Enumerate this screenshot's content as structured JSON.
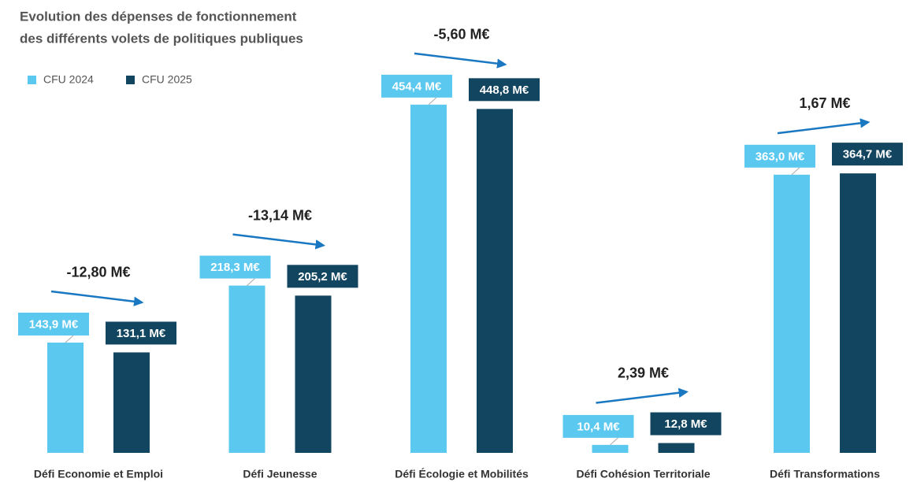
{
  "chart_data": {
    "type": "bar",
    "title": [
      "Evolution des dépenses de fonctionnement",
      "des différents volets de politiques publiques"
    ],
    "categories": [
      "Défi Economie et Emploi",
      "Défi Jeunesse",
      "Défi Écologie et Mobilités",
      "Défi Cohésion Territoriale",
      "Défi Transformations"
    ],
    "series": [
      {
        "name": "CFU 2024",
        "color": "#5bc8f0",
        "values": [
          143.9,
          218.3,
          454.4,
          10.4,
          363.0
        ],
        "value_labels": [
          "143,9 M€",
          "218,3 M€",
          "454,4 M€",
          "10,4 M€",
          "363,0 M€"
        ]
      },
      {
        "name": "CFU 2025",
        "color": "#12455f",
        "values": [
          131.1,
          205.2,
          448.8,
          12.8,
          364.7
        ],
        "value_labels": [
          "131,1 M€",
          "205,2 M€",
          "448,8 M€",
          "12,8 M€",
          "364,7 M€"
        ]
      }
    ],
    "annotations": [
      "-12,80 M€",
      "-13,14 M€",
      "-5,60 M€",
      "2,39 M€",
      "1,67 M€"
    ],
    "legend": "top-left"
  }
}
